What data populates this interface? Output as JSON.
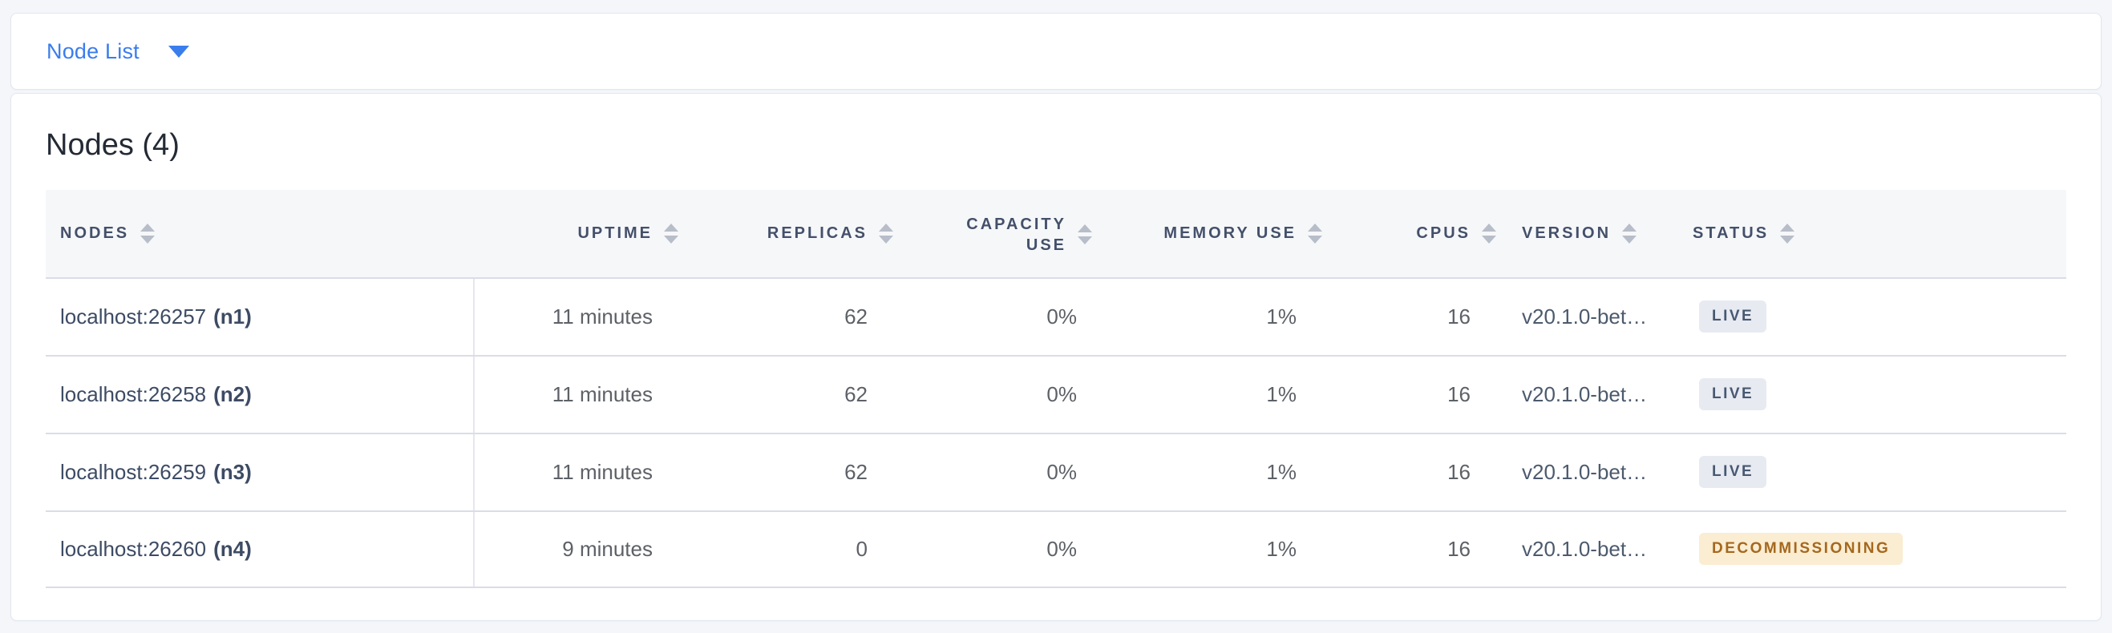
{
  "selector": {
    "label": "Node List",
    "icon": "caret-down-icon"
  },
  "panel": {
    "title": "Nodes (4)"
  },
  "table": {
    "columns": [
      {
        "key": "node",
        "label": "NODES",
        "align": "left",
        "sortable": true
      },
      {
        "key": "uptime",
        "label": "UPTIME",
        "align": "right",
        "sortable": true
      },
      {
        "key": "replicas",
        "label": "REPLICAS",
        "align": "right",
        "sortable": true
      },
      {
        "key": "capacity_use",
        "label": "CAPACITY USE",
        "align": "right",
        "sortable": true,
        "wrap": true
      },
      {
        "key": "memory_use",
        "label": "MEMORY USE",
        "align": "right",
        "sortable": true
      },
      {
        "key": "cpus",
        "label": "CPUS",
        "align": "right",
        "sortable": true
      },
      {
        "key": "version",
        "label": "VERSION",
        "align": "left",
        "sortable": true
      },
      {
        "key": "status",
        "label": "STATUS",
        "align": "left",
        "sortable": true
      }
    ],
    "rows": [
      {
        "node": {
          "address": "localhost:26257",
          "id": "(n1)"
        },
        "uptime": "11 minutes",
        "replicas": "62",
        "capacity_use": "0%",
        "memory_use": "1%",
        "cpus": "16",
        "version": "v20.1.0-bet…",
        "status": {
          "label": "LIVE",
          "type": "live"
        }
      },
      {
        "node": {
          "address": "localhost:26258",
          "id": "(n2)"
        },
        "uptime": "11 minutes",
        "replicas": "62",
        "capacity_use": "0%",
        "memory_use": "1%",
        "cpus": "16",
        "version": "v20.1.0-bet…",
        "status": {
          "label": "LIVE",
          "type": "live"
        }
      },
      {
        "node": {
          "address": "localhost:26259",
          "id": "(n3)"
        },
        "uptime": "11 minutes",
        "replicas": "62",
        "capacity_use": "0%",
        "memory_use": "1%",
        "cpus": "16",
        "version": "v20.1.0-bet…",
        "status": {
          "label": "LIVE",
          "type": "live"
        }
      },
      {
        "node": {
          "address": "localhost:26260",
          "id": "(n4)"
        },
        "uptime": "9 minutes",
        "replicas": "0",
        "capacity_use": "0%",
        "memory_use": "1%",
        "cpus": "16",
        "version": "v20.1.0-bet…",
        "status": {
          "label": "DECOMMISSIONING",
          "type": "decommissioning"
        }
      }
    ]
  },
  "colors": {
    "accent": "#3a7ded",
    "live_badge_bg": "#e7eaf1",
    "live_badge_text": "#475872",
    "decommissioning_badge_bg": "#faedd2",
    "decommissioning_badge_text": "#a5681e"
  }
}
